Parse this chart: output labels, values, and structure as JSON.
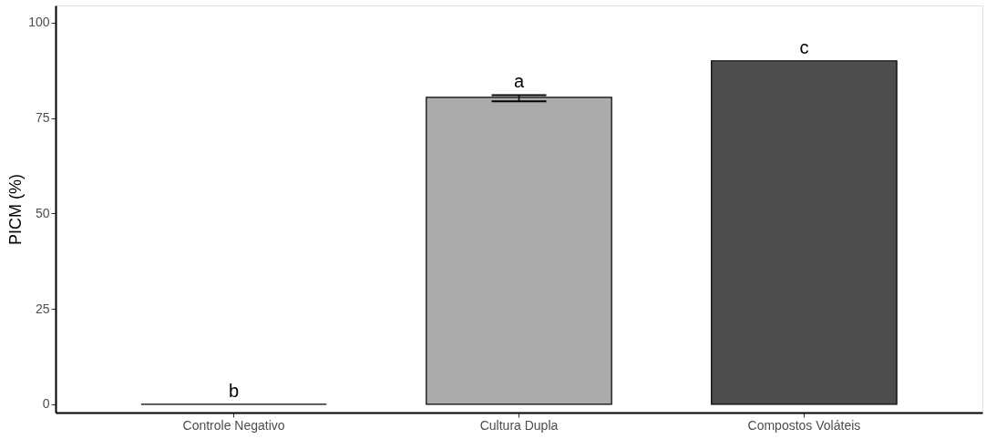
{
  "chart_data": {
    "type": "bar",
    "ylabel": "PICM (%)",
    "categories": [
      "Controle Negativo",
      "Cultura Dupla",
      "Compostos Voláteis"
    ],
    "values": [
      0,
      80.4,
      90
    ],
    "colors": [
      "#000000",
      "#ababab",
      "#4d4d4d"
    ],
    "errors": [
      null,
      [
        79.4,
        81.0
      ],
      null
    ],
    "ylim": [
      -2.2,
      104.5
    ],
    "yticks": [
      0,
      25,
      50,
      75,
      100
    ],
    "grid": false,
    "annotations": [
      "b",
      "a",
      "c"
    ]
  }
}
